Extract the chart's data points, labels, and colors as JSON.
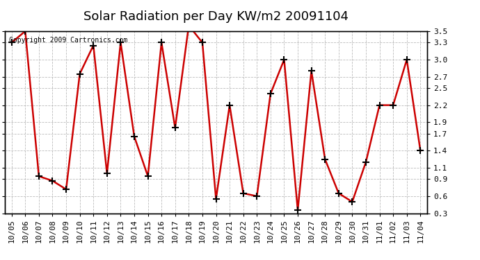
{
  "title": "Solar Radiation per Day KW/m2 20091104",
  "copyright": "Copyright 2009 Cartronics.com",
  "labels": [
    "10/05",
    "10/06",
    "10/07",
    "10/08",
    "10/09",
    "10/10",
    "10/11",
    "10/12",
    "10/13",
    "10/14",
    "10/15",
    "10/16",
    "10/17",
    "10/18",
    "10/19",
    "10/20",
    "10/21",
    "10/22",
    "10/23",
    "10/24",
    "10/25",
    "10/26",
    "10/27",
    "10/28",
    "10/29",
    "10/30",
    "10/31",
    "11/01",
    "11/02",
    "11/03",
    "11/04"
  ],
  "values": [
    3.3,
    3.5,
    0.95,
    0.87,
    0.72,
    2.75,
    3.25,
    1.0,
    3.3,
    1.65,
    0.95,
    3.3,
    1.8,
    3.6,
    3.3,
    0.55,
    2.2,
    0.65,
    0.6,
    2.4,
    3.0,
    0.35,
    2.8,
    1.25,
    0.65,
    0.5,
    1.2,
    2.2,
    2.2,
    3.0,
    1.4
  ],
  "line_color": "#cc0000",
  "marker_color": "#000000",
  "bg_color": "#ffffff",
  "plot_bg_color": "#ffffff",
  "grid_color": "#bbbbbb",
  "ylim": [
    0.3,
    3.5
  ],
  "yticks": [
    0.3,
    0.6,
    0.9,
    1.1,
    1.4,
    1.7,
    1.9,
    2.2,
    2.5,
    2.7,
    3.0,
    3.3,
    3.5
  ],
  "title_fontsize": 13,
  "copyright_fontsize": 7,
  "tick_fontsize": 8
}
